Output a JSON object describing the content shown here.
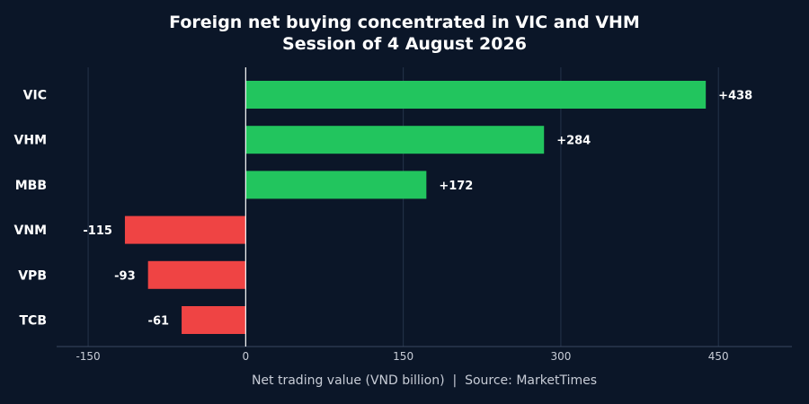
{
  "chart_data": {
    "type": "bar",
    "orientation": "horizontal",
    "title": "Foreign net buying concentrated in VIC and VHM",
    "subtitle": "Session of 4 August 2026",
    "xlabel": "Net trading value (VND billion)  |  Source: MarketTimes",
    "ylabel": "",
    "categories": [
      "VIC",
      "VHM",
      "MBB",
      "VNM",
      "VPB",
      "TCB"
    ],
    "values": [
      438,
      284,
      172,
      -115,
      -93,
      -61
    ],
    "data_labels": [
      "+438",
      "+284",
      "+172",
      "-115",
      "-93",
      "-61"
    ],
    "xlim": [
      -180,
      520
    ],
    "xticks": [
      -150,
      0,
      150,
      300,
      450
    ],
    "xtick_labels": [
      "-150",
      "0",
      "150",
      "300",
      "450"
    ],
    "grid": "vertical",
    "colors": {
      "positive": "#22c55e",
      "negative": "#ef4444",
      "background": "#0b1628",
      "grid": "#25334a",
      "zero_line": "#ffffff",
      "text": "#ffffff",
      "muted_text": "#c7ccd6"
    }
  }
}
